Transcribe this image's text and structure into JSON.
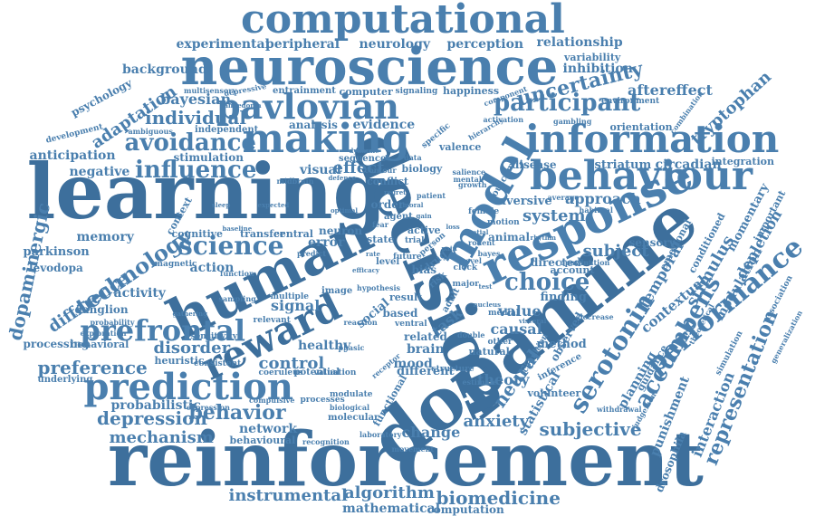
{
  "colors": {
    "primary": "#4a7fae",
    "dark": "#3d6f9c",
    "light": "#5a8cba",
    "background": "#ffffff"
  },
  "words": [
    "reinforcement",
    "learning",
    "dopamine",
    "decision",
    "neuroscience",
    "computational",
    "human",
    "response",
    "behaviour",
    "information",
    "making",
    "model",
    "pavlovian",
    "prediction",
    "reward",
    "prefrontal",
    "science",
    "serotonin",
    "performance",
    "accumbens",
    "representation",
    "technology",
    "depression",
    "behavior",
    "influence",
    "avoidance",
    "participant",
    "uncertainty",
    "choice",
    "dopaminergic",
    "preference",
    "adaptation",
    "individual",
    "subjective",
    "anxiety",
    "mechanism",
    "difference",
    "control",
    "instrumental",
    "algorithm",
    "biomedicine",
    "mathematical",
    "computation",
    "neural",
    "system",
    "subject",
    "interaction",
    "punishment",
    "drosophila",
    "stimulus",
    "depletion",
    "tryptophan",
    "aftereffect",
    "relationship",
    "perception",
    "neurology",
    "peripheral",
    "experimental",
    "background",
    "psychology",
    "anticipation",
    "negative",
    "memory",
    "parkinson",
    "levodopa",
    "activity",
    "ganglion",
    "processing",
    "behavioral",
    "disorder",
    "heuristic",
    "healthy",
    "network",
    "change",
    "theory",
    "mood",
    "brain",
    "value",
    "causal",
    "finding",
    "account",
    "directed",
    "approach",
    "aversive",
    "disease",
    "striatum",
    "circadian",
    "integration",
    "emotional",
    "conditioned",
    "momentary",
    "important",
    "modulation",
    "contextual",
    "temporal",
    "sensory",
    "planning",
    "guidance",
    "statistical",
    "evidence",
    "analysis",
    "visual",
    "effect",
    "bayesian",
    "stimulation",
    "action",
    "signal",
    "error",
    "neuron",
    "central",
    "transfer",
    "cognitive",
    "context",
    "variability",
    "inhibition",
    "orientation",
    "environment",
    "happiness",
    "computer",
    "entrainment",
    "signaling",
    "conflict",
    "biology",
    "valence",
    "specific",
    "sequence",
    "independent",
    "multisensory",
    "depressive",
    "ambiguous",
    "development",
    "social",
    "probabilistic",
    "magnetic",
    "sensitivity",
    "underlying",
    "consistent",
    "coeruleus",
    "potential",
    "valuation",
    "modulate",
    "molecular",
    "biological",
    "behavioural",
    "functional",
    "compulsive",
    "processes",
    "expression",
    "laboratory",
    "movement",
    "recognition",
    "withdrawal",
    "judgement",
    "simulation",
    "generalization",
    "association",
    "theoretical",
    "related",
    "different",
    "structure",
    "volunteer",
    "method",
    "observed",
    "inference",
    "natural",
    "cognition",
    "trial",
    "active",
    "level",
    "state",
    "agent",
    "order",
    "future",
    "image",
    "multiple",
    "relevant",
    "result",
    "based",
    "bias",
    "drug",
    "risk",
    "task",
    "adult",
    "major",
    "clock",
    "novel",
    "rodent",
    "female",
    "patient",
    "mental",
    "salience",
    "growth",
    "outcome",
    "animal",
    "motion",
    "bayes",
    "other",
    "medial",
    "double",
    "receptor",
    "phasic",
    "reaction",
    "estimate",
    "hierarchy",
    "activation",
    "component",
    "gambling",
    "combination",
    "operant",
    "average",
    "habitual",
    "evaluation",
    "decrease",
    "hypothesis",
    "exploration",
    "probability",
    "gathering",
    "sampling",
    "midbrain",
    "anhedonia",
    "defence",
    "predict",
    "function",
    "perception",
    "person",
    "ventral",
    "visceral",
    "contour",
    "data",
    "fear",
    "regret",
    "moral",
    "rate",
    "test",
    "efficacy",
    "nucleus",
    "dynamic",
    "rhythm",
    "baseline",
    "sleep",
    "expected",
    "optimal",
    "spatial",
    "gain",
    "loss",
    "pain"
  ]
}
